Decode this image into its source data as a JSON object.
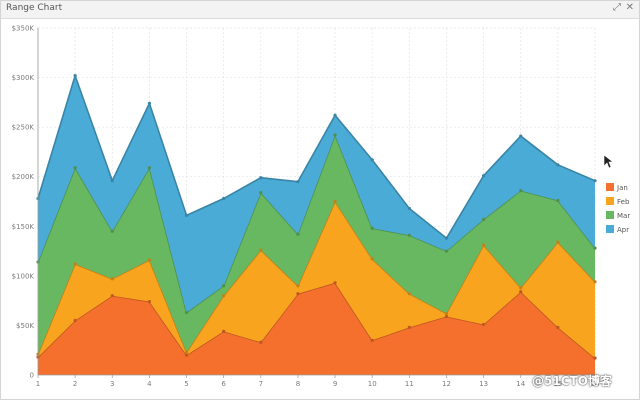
{
  "window": {
    "title": "Range Chart",
    "expand_icon": "expand-icon",
    "close_icon": "close-icon"
  },
  "colors": {
    "Jan": "#f4702c",
    "Feb": "#f8a41f",
    "Mar": "#68b862",
    "Apr": "#4aabd6",
    "grid": "#e3e3e3",
    "axis": "#9a9a9a"
  },
  "chart_data": {
    "type": "area",
    "stacked": true,
    "x": [
      1,
      2,
      3,
      4,
      5,
      6,
      7,
      8,
      9,
      10,
      11,
      12,
      13,
      14,
      15,
      16
    ],
    "x_tick_labels": [
      "1",
      "2",
      "3",
      "4",
      "5",
      "6",
      "7",
      "8",
      "9",
      "10",
      "11",
      "12",
      "13",
      "14",
      "15",
      "16"
    ],
    "ylim": [
      0,
      350000
    ],
    "y_ticks": [
      0,
      50000,
      100000,
      150000,
      200000,
      250000,
      300000,
      350000
    ],
    "y_tick_labels": [
      "0",
      "$50K",
      "$100K",
      "$150K",
      "$200K",
      "$250K",
      "$300K",
      "$350K"
    ],
    "grid": true,
    "legend_position": "right",
    "series": [
      {
        "name": "Jan",
        "values": [
          18000,
          55000,
          80000,
          74000,
          20000,
          44000,
          33000,
          82000,
          93000,
          35000,
          48000,
          59000,
          51000,
          84000,
          48000,
          17000
        ]
      },
      {
        "name": "Feb",
        "values": [
          3000,
          57000,
          17000,
          42000,
          3000,
          36000,
          93000,
          8000,
          82000,
          82000,
          34000,
          3000,
          80000,
          4000,
          86000,
          77000
        ]
      },
      {
        "name": "Mar",
        "values": [
          93000,
          97000,
          48000,
          93000,
          40000,
          10000,
          58000,
          52000,
          67000,
          31000,
          59000,
          63000,
          26000,
          98000,
          42000,
          34000
        ]
      },
      {
        "name": "Apr",
        "values": [
          64000,
          93000,
          51000,
          65000,
          98000,
          88000,
          15000,
          53000,
          20000,
          69000,
          27000,
          13000,
          44000,
          55000,
          36000,
          68000
        ]
      }
    ]
  },
  "watermark": {
    "text": "@51CTO博客"
  }
}
